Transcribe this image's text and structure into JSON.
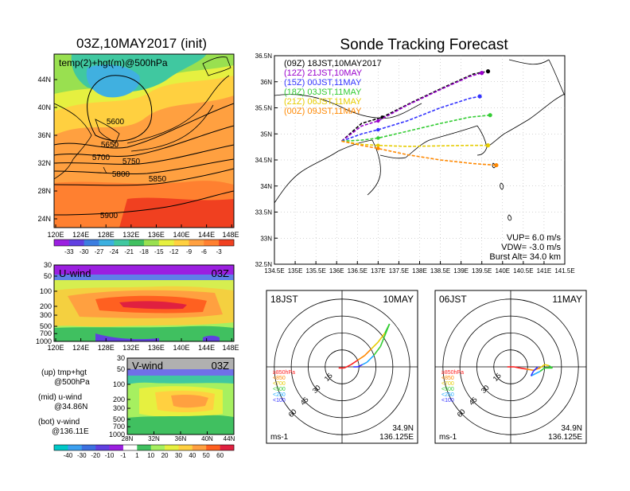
{
  "left_title": "03Z,10MAY2017 (init)",
  "right_title": "Sonde Tracking Forecast",
  "map_panel": {
    "label": "temp(2)+hgt(m)@500hPa",
    "lat_ticks": [
      "44N",
      "40N",
      "36N",
      "32N",
      "28N",
      "24N"
    ],
    "lon_ticks": [
      "120E",
      "124E",
      "128E",
      "132E",
      "136E",
      "140E",
      "144E",
      "148E"
    ],
    "contour_labels": [
      "5600",
      "5650",
      "5700",
      "5750",
      "5800",
      "5850",
      "5900"
    ],
    "colorbar_labels": [
      "-33",
      "-30",
      "-27",
      "-24",
      "-21",
      "-18",
      "-15",
      "-12",
      "-9",
      "-6",
      "-3"
    ]
  },
  "u_panel": {
    "label": "U-wind",
    "time": "03Z",
    "p_ticks": [
      "30",
      "50",
      "100",
      "200",
      "300",
      "500",
      "700",
      "1000"
    ],
    "lon_ticks": [
      "120E",
      "124E",
      "128E",
      "132E",
      "136E",
      "140E",
      "144E",
      "148E"
    ]
  },
  "v_panel": {
    "label": "V-wind",
    "time": "03Z",
    "p_ticks": [
      "30",
      "50",
      "100",
      "200",
      "300",
      "500",
      "700",
      "1000"
    ],
    "lat_ticks": [
      "28N",
      "32N",
      "36N",
      "40N",
      "44N"
    ],
    "colorbar_labels": [
      "-40",
      "-30",
      "-20",
      "-10",
      "-1",
      "1",
      "10",
      "20",
      "30",
      "40",
      "50",
      "60"
    ]
  },
  "legend_notes": {
    "up_a": "(up) tmp+hgt",
    "up_b": "@500hPa",
    "mid_a": "(mid) u-wind",
    "mid_b": "@34.86N",
    "bot_a": "(bot) v-wind",
    "bot_b": "@136.11E"
  },
  "track_panel": {
    "lat_ticks": [
      "36.5N",
      "36N",
      "35.5N",
      "35N",
      "34.5N",
      "34N",
      "33.5N",
      "33N",
      "32.5N"
    ],
    "lon_ticks": [
      "134.5E",
      "135E",
      "135.5E",
      "136E",
      "136.5E",
      "137E",
      "137.5E",
      "138E",
      "138.5E",
      "139E",
      "139.5E",
      "140E",
      "140.5E",
      "141E",
      "141.5E"
    ],
    "vup": "VUP=  6.0  m/s",
    "vdw": "VDW= -3.0  m/s",
    "burst": "Burst Alt=  34.0  km"
  },
  "hodo_left": {
    "left": "18JST",
    "right": "10MAY",
    "lat": "34.9N",
    "lon": "136.125E",
    "unit": "ms-1"
  },
  "hodo_right": {
    "left": "06JST",
    "right": "11MAY",
    "lat": "34.9N",
    "lon": "136.125E",
    "unit": "ms-1"
  },
  "hodo_rings": [
    "15",
    "30",
    "45",
    "60"
  ],
  "hodo_legend": [
    "≥850hPa",
    "<850",
    "<700",
    "<500",
    "<250",
    "<100"
  ],
  "chart_data": {
    "type": "line",
    "title": "Sonde Tracking Forecast",
    "xlim": [
      134.5,
      141.5
    ],
    "ylim": [
      32.5,
      36.5
    ],
    "launch": {
      "lon": 136.12,
      "lat": 34.86
    },
    "series": [
      {
        "name": "(09Z) 18JST,10MAY2017",
        "color": "#000000",
        "points": [
          [
            136.12,
            34.86
          ],
          [
            136.6,
            35.2
          ],
          [
            137.1,
            35.32
          ],
          [
            137.8,
            35.6
          ],
          [
            138.6,
            35.9
          ],
          [
            139.3,
            36.15
          ],
          [
            139.65,
            36.2
          ]
        ]
      },
      {
        "name": "(12Z) 21JST,10MAY",
        "color": "#9900cc",
        "points": [
          [
            136.12,
            34.86
          ],
          [
            136.6,
            35.15
          ],
          [
            137.0,
            35.25
          ],
          [
            137.7,
            35.55
          ],
          [
            138.5,
            35.85
          ],
          [
            139.2,
            36.1
          ],
          [
            139.5,
            36.17
          ]
        ]
      },
      {
        "name": "(15Z) 00JST,11MAY",
        "color": "#3333ff",
        "points": [
          [
            136.12,
            34.86
          ],
          [
            136.6,
            35.0
          ],
          [
            137.0,
            35.08
          ],
          [
            137.7,
            35.25
          ],
          [
            138.5,
            35.5
          ],
          [
            139.2,
            35.68
          ],
          [
            139.45,
            35.72
          ]
        ]
      },
      {
        "name": "(18Z) 03JST,11MAY",
        "color": "#33cc33",
        "points": [
          [
            136.12,
            34.86
          ],
          [
            136.6,
            34.88
          ],
          [
            137.0,
            34.92
          ],
          [
            137.7,
            35.05
          ],
          [
            138.5,
            35.2
          ],
          [
            139.2,
            35.32
          ],
          [
            139.7,
            35.36
          ]
        ]
      },
      {
        "name": "(21Z) 06JST,11MAY",
        "color": "#e6cc00",
        "points": [
          [
            136.12,
            34.86
          ],
          [
            136.6,
            34.8
          ],
          [
            137.0,
            34.78
          ],
          [
            137.7,
            34.76
          ],
          [
            138.5,
            34.77
          ],
          [
            139.2,
            34.78
          ],
          [
            139.65,
            34.78
          ]
        ]
      },
      {
        "name": "(00Z) 09JST,11MAY",
        "color": "#ff8800",
        "points": [
          [
            136.12,
            34.86
          ],
          [
            136.6,
            34.78
          ],
          [
            137.0,
            34.72
          ],
          [
            137.7,
            34.6
          ],
          [
            138.5,
            34.5
          ],
          [
            139.3,
            34.43
          ],
          [
            139.85,
            34.4
          ]
        ]
      }
    ]
  }
}
